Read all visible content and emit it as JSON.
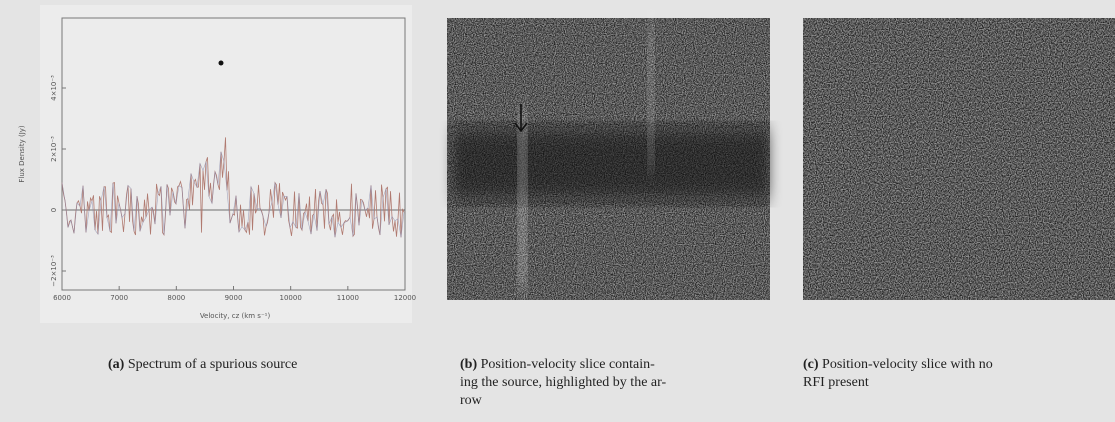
{
  "figure": {
    "spectrum": {
      "x_ticks": [
        "6000",
        "7000",
        "8000",
        "9000",
        "10000",
        "11000",
        "12000"
      ],
      "x_label": "Velocity, cz (km s⁻¹)",
      "y_label": "Flux Density (Jy)",
      "y_ticks": [
        "4×10⁻³",
        "2×10⁻³",
        "0",
        "−2×10⁻³"
      ]
    },
    "captions": [
      {
        "label": "(a)",
        "lines": [
          "Spectrum of a spurious source"
        ]
      },
      {
        "label": "(b)",
        "lines": [
          "Position-velocity slice contain-",
          "ing the source, highlighted by the ar-",
          "row"
        ]
      },
      {
        "label": "(c)",
        "lines": [
          "Position-velocity slice with no",
          "RFI present"
        ]
      }
    ]
  }
}
